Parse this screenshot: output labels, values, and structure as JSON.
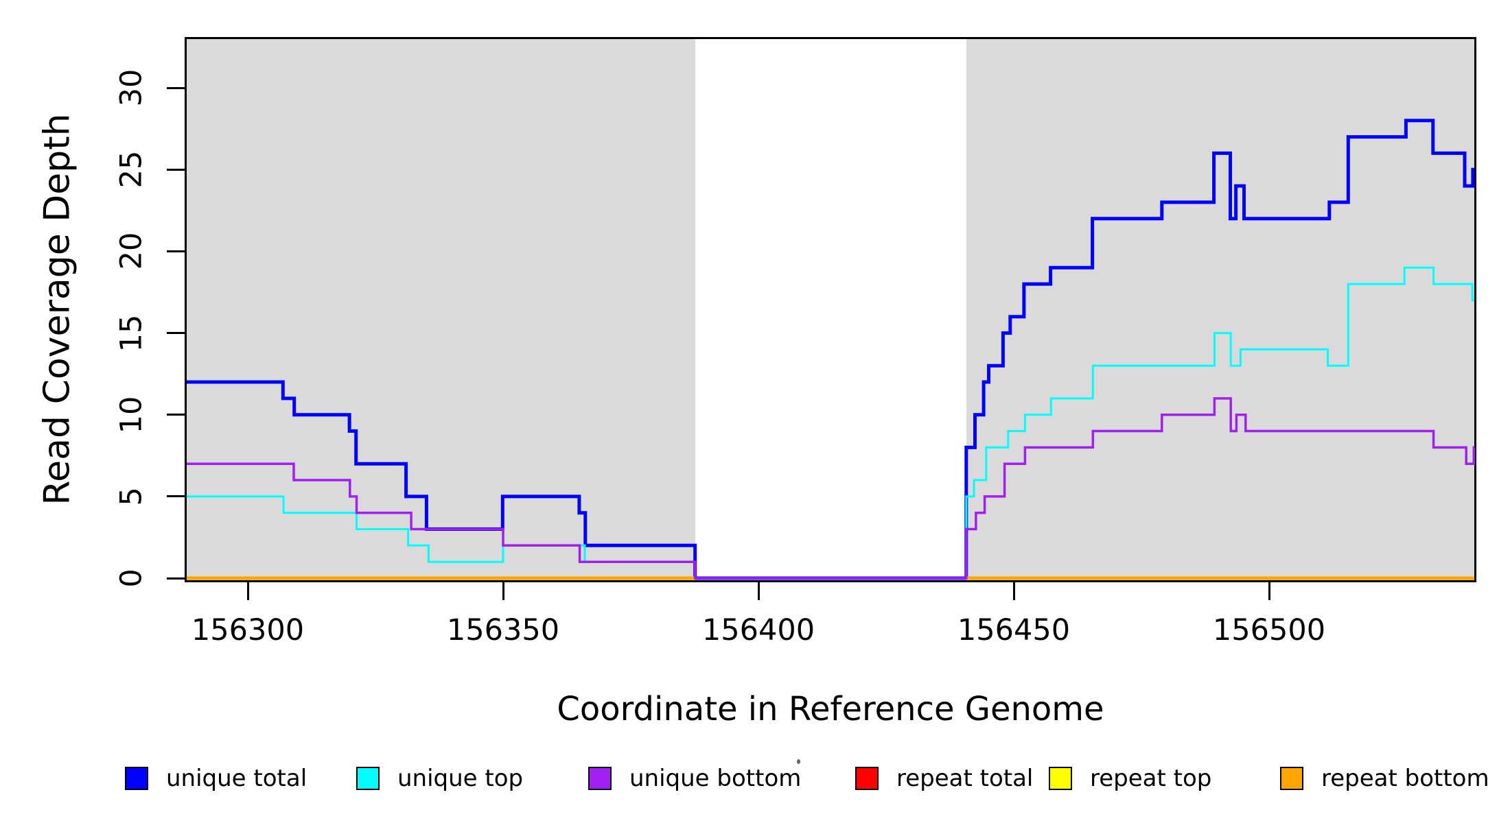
{
  "chart_data": {
    "type": "line",
    "subtype": "step",
    "title": "",
    "xlabel": "Coordinate in Reference Genome",
    "ylabel": "Read Coverage Depth",
    "x_ticks": [
      {
        "value": 156300,
        "label": "156300"
      },
      {
        "value": 156350,
        "label": "156350"
      },
      {
        "value": 156400,
        "label": "156400"
      },
      {
        "value": 156450,
        "label": "156450"
      },
      {
        "value": 156500,
        "label": "156500"
      }
    ],
    "y_ticks": [
      {
        "value": 0,
        "label": "0"
      },
      {
        "value": 5,
        "label": "5"
      },
      {
        "value": 10,
        "label": "10"
      },
      {
        "value": 15,
        "label": "15"
      },
      {
        "value": 20,
        "label": "20"
      },
      {
        "value": 25,
        "label": "25"
      },
      {
        "value": 30,
        "label": "30"
      }
    ],
    "x_range": [
      156288,
      156540.5
    ],
    "y_range": [
      0,
      33
    ],
    "grid": false,
    "highlight_regions": [
      {
        "from": 156288,
        "to": 156387.6
      },
      {
        "from": 156440.7,
        "to": 156540.5
      }
    ],
    "highlight_color": "#DADADA",
    "legend_position": "bottom",
    "legend": [
      {
        "label": "unique total",
        "color": "#0000FF"
      },
      {
        "label": "unique top",
        "color": "#00FFFF"
      },
      {
        "label": "unique bottom",
        "color": "#A020F0"
      },
      {
        "label": "repeat total",
        "color": "#FF0000"
      },
      {
        "label": "repeat top",
        "color": "#FFFF00"
      },
      {
        "label": "repeat bottom",
        "color": "#FFA500"
      }
    ],
    "series": [
      {
        "name": "unique total",
        "color": "#0000FF",
        "width": 5,
        "segments": [
          [
            [
              156288,
              12
            ],
            [
              156306.9,
              11
            ],
            [
              156309.1,
              10
            ],
            [
              156319.9,
              9
            ],
            [
              156321.2,
              7
            ],
            [
              156331,
              5
            ],
            [
              156335,
              3
            ],
            [
              156349.9,
              5
            ],
            [
              156364.9,
              4
            ],
            [
              156366.1,
              2
            ],
            [
              156387.6,
              0
            ],
            [
              156440.7,
              8
            ],
            [
              156442.4,
              10
            ],
            [
              156444.1,
              12
            ],
            [
              156445.1,
              13
            ],
            [
              156447.9,
              15
            ],
            [
              156449.3,
              16
            ],
            [
              156452,
              18
            ],
            [
              156457.2,
              19
            ],
            [
              156465.4,
              22
            ],
            [
              156479,
              23
            ],
            [
              156489.2,
              26
            ],
            [
              156492.4,
              22
            ],
            [
              156493.5,
              24
            ],
            [
              156495.1,
              22
            ],
            [
              156511.8,
              23
            ],
            [
              156515.5,
              27
            ],
            [
              156526.8,
              28
            ],
            [
              156532.1,
              26
            ],
            [
              156538.3,
              24
            ],
            [
              156539.9,
              25
            ],
            [
              156540.5,
              25
            ]
          ]
        ]
      },
      {
        "name": "unique top",
        "color": "#00FFFF",
        "width": 3,
        "segments": [
          [
            [
              156288,
              5
            ],
            [
              156307,
              4
            ],
            [
              156321.3,
              3
            ],
            [
              156331.4,
              2
            ],
            [
              156335.4,
              1
            ],
            [
              156350,
              2
            ],
            [
              156366,
              1
            ],
            [
              156387.6,
              0
            ],
            [
              156440.7,
              5
            ],
            [
              156442.2,
              6
            ],
            [
              156444.6,
              8
            ],
            [
              156448.9,
              9
            ],
            [
              156452.2,
              10
            ],
            [
              156457.3,
              11
            ],
            [
              156465.5,
              13
            ],
            [
              156489.3,
              15
            ],
            [
              156492.5,
              13
            ],
            [
              156494.4,
              14
            ],
            [
              156511.5,
              13
            ],
            [
              156515.5,
              18
            ],
            [
              156526.5,
              19
            ],
            [
              156532.2,
              18
            ],
            [
              156539.8,
              17
            ],
            [
              156540.5,
              17
            ]
          ]
        ]
      },
      {
        "name": "repeat total",
        "color": "#FF0000",
        "width": 4.5,
        "segments": [
          [
            [
              156288,
              0
            ],
            [
              156387.6,
              0
            ]
          ],
          [
            [
              156440.7,
              0
            ],
            [
              156540.5,
              0
            ]
          ]
        ]
      },
      {
        "name": "repeat top",
        "color": "#FFFF00",
        "width": 4.5,
        "segments": [
          [
            [
              156288,
              0
            ],
            [
              156387.6,
              0
            ]
          ],
          [
            [
              156440.7,
              0
            ],
            [
              156540.5,
              0
            ]
          ]
        ]
      },
      {
        "name": "repeat bottom",
        "color": "#FFA500",
        "width": 5,
        "segments": [
          [
            [
              156288,
              0
            ],
            [
              156387.6,
              0
            ]
          ],
          [
            [
              156440.7,
              0
            ],
            [
              156540.5,
              0
            ]
          ]
        ]
      },
      {
        "name": "unique bottom",
        "color": "#A020F0",
        "width": 3.5,
        "segments": [
          [
            [
              156288,
              7
            ],
            [
              156309,
              6
            ],
            [
              156320,
              5
            ],
            [
              156321.3,
              4
            ],
            [
              156332,
              3
            ],
            [
              156350,
              2
            ],
            [
              156365,
              1
            ],
            [
              156387.6,
              0
            ],
            [
              156440.7,
              3
            ],
            [
              156442.6,
              4
            ],
            [
              156444.3,
              5
            ],
            [
              156448.2,
              7
            ],
            [
              156452.2,
              8
            ],
            [
              156465.5,
              9
            ],
            [
              156479,
              10
            ],
            [
              156489.3,
              11
            ],
            [
              156492.5,
              9
            ],
            [
              156493.6,
              10
            ],
            [
              156495.4,
              9
            ],
            [
              156532.2,
              8
            ],
            [
              156538.6,
              7
            ],
            [
              156540.1,
              8
            ],
            [
              156540.5,
              8
            ]
          ]
        ]
      }
    ]
  }
}
